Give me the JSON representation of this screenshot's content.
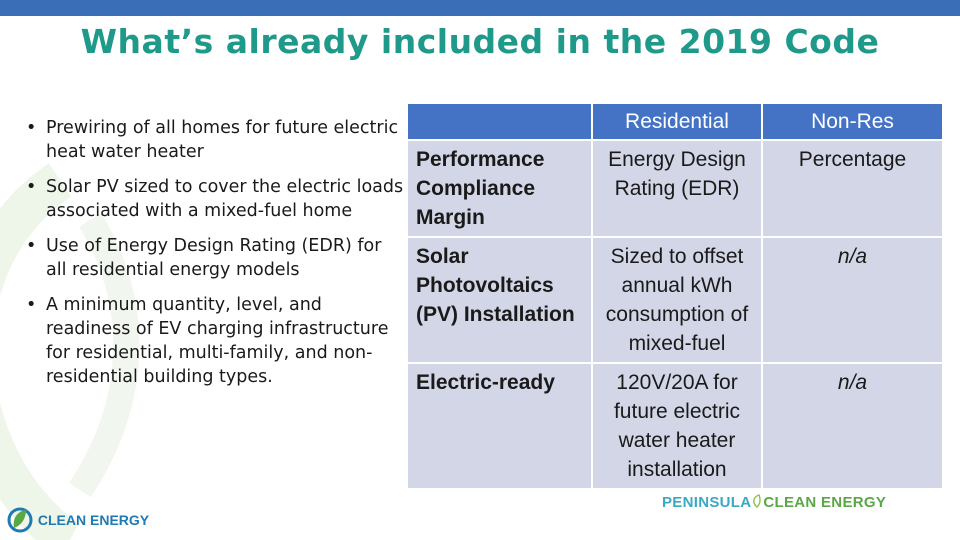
{
  "title": "What’s already included in the 2019 Code",
  "bullets": [
    "Prewiring of all homes for future electric heat water heater",
    "Solar PV sized to cover the electric loads associated with a mixed-fuel home",
    "Use of Energy Design Rating (EDR) for all residential energy models",
    "A minimum quantity, level, and readiness of EV charging infrastructure for residential, multi-family, and non-residential building types."
  ],
  "bullet_marker": "•",
  "table": {
    "headers": [
      "",
      "Residential",
      "Non-Res"
    ],
    "rows": [
      {
        "label": "Performance Compliance Margin",
        "residential": "Energy Design Rating (EDR)",
        "nonres": "Percentage"
      },
      {
        "label": "Solar Photovoltaics (PV) Installation",
        "residential": "Sized to offset annual kWh consumption of mixed-fuel",
        "nonres": "n/a"
      },
      {
        "label": "Electric-ready",
        "residential": "120V/20A for future electric water heater installation",
        "nonres": "n/a"
      }
    ]
  },
  "logos": {
    "pce_part1": "PENINSULA",
    "pce_part2": "CLEAN ENERGY",
    "pce_leaf_icon": "leaf-icon",
    "ce_text": "CLEAN ENERGY",
    "ce_mark_icon": "clean-energy-leaf-icon"
  },
  "colors": {
    "top_bar": "#3a6fb7",
    "title": "#1f9a8a",
    "table_header": "#4472c4",
    "table_cell": "#d2d6e6"
  }
}
